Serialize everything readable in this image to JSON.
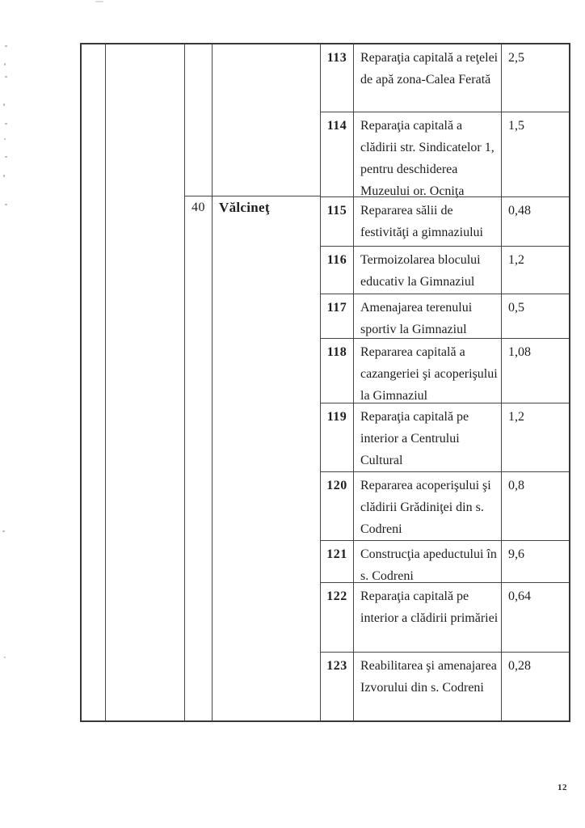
{
  "page": {
    "number": "12"
  },
  "table": {
    "group": {
      "index": "40",
      "name": "Vălcineţ"
    },
    "rows": [
      {
        "num": "113",
        "desc": "Reparaţia capitală a reţelei de apă zona-Calea Ferată",
        "value": "2,5"
      },
      {
        "num": "114",
        "desc": "Reparaţia capitală a clădirii str. Sindicatelor 1, pentru deschiderea Muzeului or. Ocniţa",
        "value": "1,5"
      },
      {
        "num": "115",
        "desc": "Repararea sălii de festivităţi a gimnaziului",
        "value": "0,48"
      },
      {
        "num": "116",
        "desc": "Termoizolarea blocului educativ la Gimnaziul",
        "value": "1,2"
      },
      {
        "num": "117",
        "desc": "Amenajarea terenului sportiv la Gimnaziul",
        "value": "0,5"
      },
      {
        "num": "118",
        "desc": "Repararea capitală a cazangeriei şi acoperişului la Gimnaziul",
        "value": "1,08"
      },
      {
        "num": "119",
        "desc": "Reparaţia capitală pe interior a Centrului Cultural",
        "value": "1,2"
      },
      {
        "num": "120",
        "desc": "Repararea acoperişului şi clădirii Grădiniţei din s. Codreni",
        "value": "0,8"
      },
      {
        "num": "121",
        "desc": "Construcţia apeductului în s. Codreni",
        "value": "9,6"
      },
      {
        "num": "122",
        "desc": "Reparaţia capitală pe interior a clădirii primăriei",
        "value": "0,64"
      },
      {
        "num": "123",
        "desc": "Reabilitarea şi amenajarea Izvorului din s. Codreni",
        "value": "0,28"
      }
    ]
  }
}
